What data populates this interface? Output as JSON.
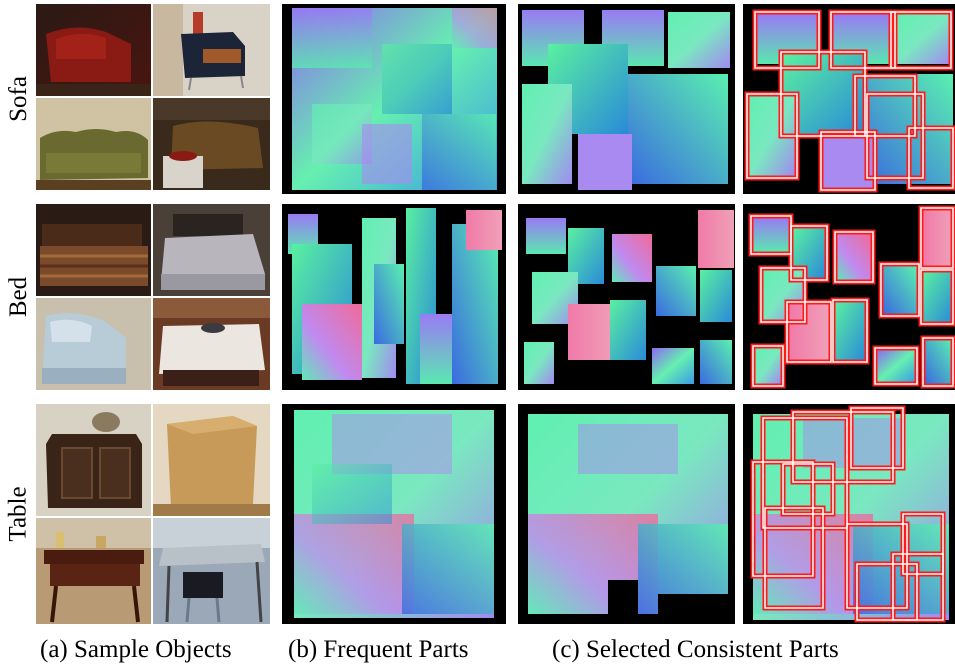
{
  "rows": [
    {
      "label": "Sofa"
    },
    {
      "label": "Bed"
    },
    {
      "label": "Table"
    }
  ],
  "captions": {
    "sample_objects": "(a) Sample Objects",
    "frequent_parts": "(b) Frequent Parts",
    "selected_parts": "(c) Selected Consistent Parts"
  },
  "colors": {
    "box_outline": "#ff1a1a",
    "box_inner": "#ffffff",
    "background": "#000000"
  }
}
